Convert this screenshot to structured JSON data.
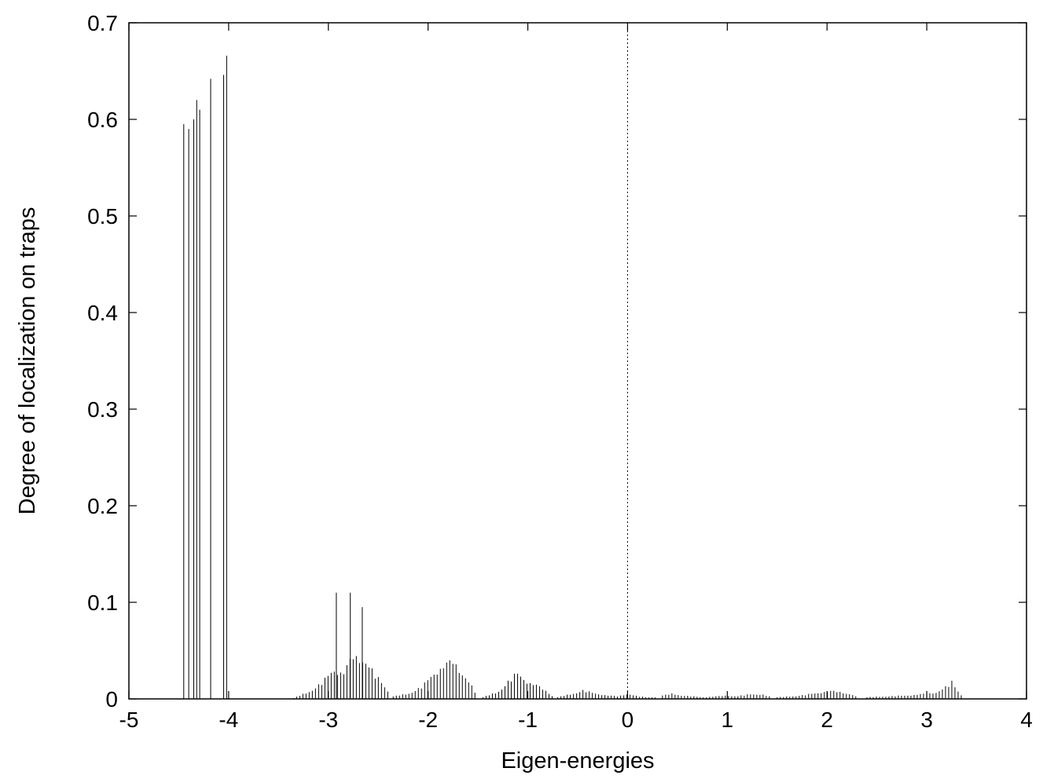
{
  "chart_data": {
    "type": "bar",
    "title": "",
    "xlabel": "Eigen-energies",
    "ylabel": "Degree of localization on traps",
    "xlim": [
      -5,
      4
    ],
    "ylim": [
      0,
      0.7
    ],
    "x_ticks": [
      "-5",
      "-4",
      "-3",
      "-2",
      "-1",
      "0",
      "1",
      "2",
      "3",
      "4"
    ],
    "y_ticks": [
      "0",
      "0.1",
      "0.2",
      "0.3",
      "0.4",
      "0.5",
      "0.6",
      "0.7"
    ],
    "grid": false,
    "reference_line": {
      "x": 0,
      "style": "dotted"
    },
    "series": [
      {
        "x": [
          -4.45,
          -4.4,
          -4.35,
          -4.32,
          -4.29,
          -4.18,
          -4.05,
          -4.02,
          -2.92,
          -2.78,
          -2.66
        ],
        "values": [
          0.595,
          0.59,
          0.6,
          0.62,
          0.61,
          0.642,
          0.646,
          0.666,
          0.11,
          0.11,
          0.095
        ]
      }
    ],
    "envelopes": [
      {
        "x": [
          -3.35,
          -3.2,
          -3.05,
          -2.95,
          -2.85,
          -2.75,
          -2.65,
          -2.55,
          -2.45,
          -2.38
        ],
        "values": [
          0.001,
          0.008,
          0.02,
          0.035,
          0.03,
          0.05,
          0.048,
          0.03,
          0.018,
          0.005
        ]
      },
      {
        "x": [
          -2.35,
          -2.2,
          -2.05,
          -1.95,
          -1.85,
          -1.75,
          -1.65,
          -1.55,
          -1.5
        ],
        "values": [
          0.003,
          0.006,
          0.015,
          0.03,
          0.038,
          0.044,
          0.03,
          0.012,
          0.003
        ]
      },
      {
        "x": [
          -1.45,
          -1.3,
          -1.2,
          -1.1,
          -1.0,
          -0.9,
          -0.8,
          -0.75
        ],
        "values": [
          0.002,
          0.008,
          0.02,
          0.03,
          0.02,
          0.015,
          0.008,
          0.003
        ]
      },
      {
        "x": [
          -0.7,
          -0.55,
          -0.45,
          -0.35,
          -0.2,
          -0.1,
          0.0,
          0.1,
          0.2,
          0.3
        ],
        "values": [
          0.002,
          0.006,
          0.01,
          0.007,
          0.004,
          0.003,
          0.006,
          0.003,
          0.002,
          0.002
        ]
      },
      {
        "x": [
          0.35,
          0.45,
          0.55,
          0.65,
          0.75,
          0.9,
          1.0,
          1.1,
          1.25,
          1.35,
          1.45
        ],
        "values": [
          0.004,
          0.006,
          0.004,
          0.003,
          0.002,
          0.003,
          0.004,
          0.003,
          0.006,
          0.005,
          0.002
        ]
      },
      {
        "x": [
          1.5,
          1.65,
          1.8,
          1.95,
          2.05,
          2.15,
          2.25,
          2.3
        ],
        "values": [
          0.002,
          0.003,
          0.005,
          0.008,
          0.009,
          0.008,
          0.005,
          0.002
        ]
      },
      {
        "x": [
          2.4,
          2.6,
          2.8,
          3.0,
          3.1,
          3.2,
          3.25,
          3.3,
          3.35
        ],
        "values": [
          0.002,
          0.003,
          0.004,
          0.006,
          0.008,
          0.014,
          0.02,
          0.012,
          0.004
        ]
      }
    ]
  }
}
